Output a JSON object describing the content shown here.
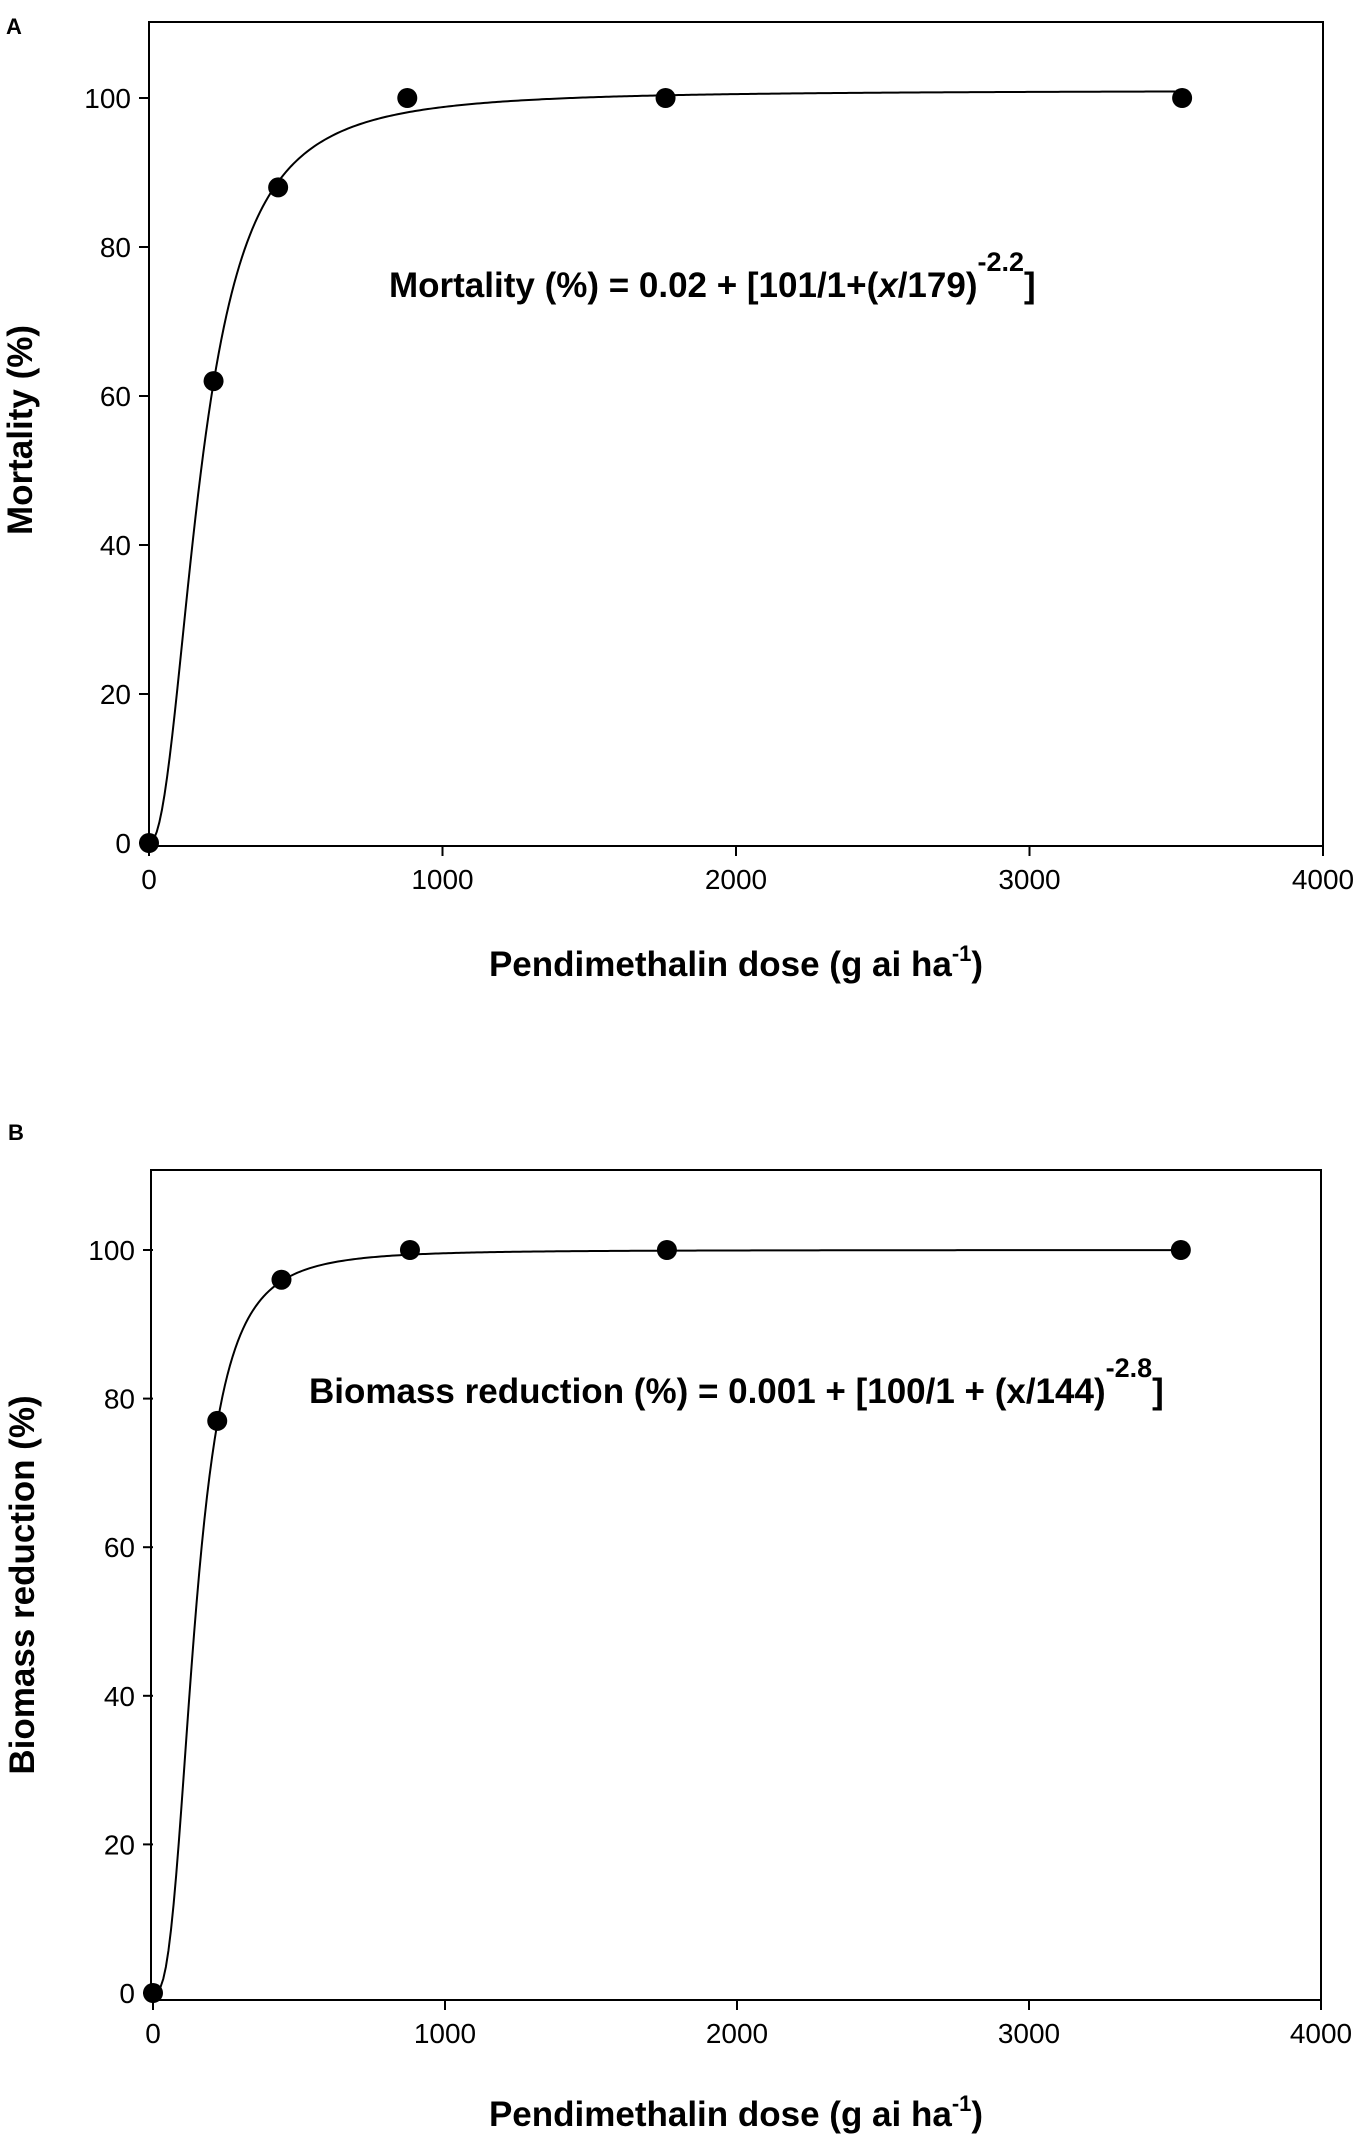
{
  "chart_data": [
    {
      "type": "scatter",
      "panel": "A",
      "xlabel": "Pendimethalin dose (g ai ha",
      "xlabel_sup": "-1",
      "xlabel_end": ")",
      "ylabel": "Mortality (%)",
      "xlim": [
        0,
        4000
      ],
      "ylim": [
        0,
        110
      ],
      "x_ticks": [
        0,
        1000,
        2000,
        3000,
        4000
      ],
      "y_ticks": [
        0,
        20,
        40,
        60,
        80,
        100
      ],
      "series": [
        {
          "x": [
            0,
            220,
            440,
            880,
            1760,
            3520
          ],
          "y": [
            0,
            62,
            88,
            100,
            100,
            100
          ]
        }
      ],
      "fit": {
        "c": 0.02,
        "d": 101,
        "x50": 179,
        "b": -2.2
      },
      "equation": {
        "main": "Mortality (%) = 0.02 + [101/1+(",
        "italic_x": "x",
        "rest": "/179)",
        "sup": "-2.2",
        "close": "]"
      }
    },
    {
      "type": "scatter",
      "panel": "B",
      "xlabel": "Pendimethalin dose (g ai ha",
      "xlabel_sup": "-1",
      "xlabel_end": ")",
      "ylabel": "Biomass reduction (%)",
      "xlim": [
        0,
        4000
      ],
      "ylim": [
        0,
        110
      ],
      "x_ticks": [
        0,
        1000,
        2000,
        3000,
        4000
      ],
      "y_ticks": [
        0,
        20,
        40,
        60,
        80,
        100
      ],
      "series": [
        {
          "x": [
            0,
            220,
            440,
            880,
            1760,
            3520
          ],
          "y": [
            0,
            77,
            96,
            100,
            100,
            100
          ]
        }
      ],
      "fit": {
        "c": 0.001,
        "d": 100,
        "x50": 144,
        "b": -2.8
      },
      "equation": {
        "main": "Biomass reduction (%) = 0.001 + [100/1 + (x/144)",
        "sup": "-2.8",
        "close": "]"
      }
    }
  ]
}
